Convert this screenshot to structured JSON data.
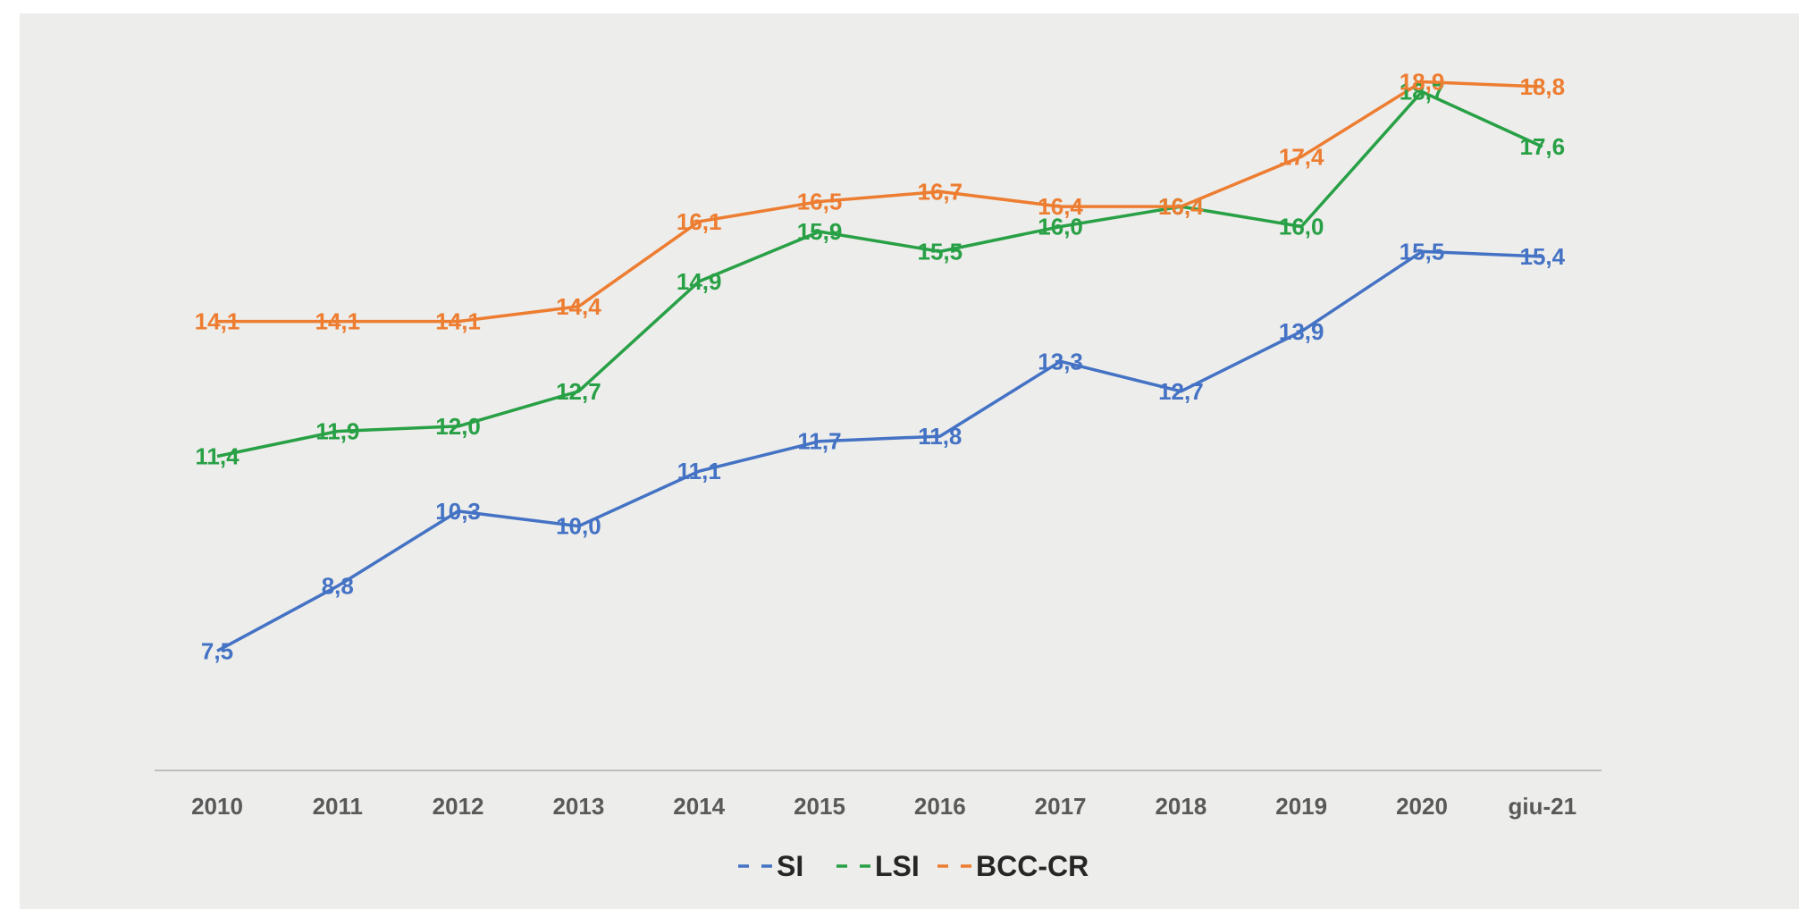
{
  "chart_data": {
    "type": "line",
    "categories": [
      "2010",
      "2011",
      "2012",
      "2013",
      "2014",
      "2015",
      "2016",
      "2017",
      "2018",
      "2019",
      "2020",
      "giu-21"
    ],
    "ylim": [
      5,
      20
    ],
    "grid": false,
    "legend_position": "bottom",
    "series": [
      {
        "name": "SI",
        "color": "#4472c4",
        "values": [
          7.5,
          8.8,
          10.3,
          10.0,
          11.1,
          11.7,
          11.8,
          13.3,
          12.7,
          13.9,
          15.5,
          15.4
        ],
        "labels": [
          "7,5",
          "8,8",
          "10,3",
          "10,0",
          "11,1",
          "11,7",
          "11,8",
          "13,3",
          "12,7",
          "13,9",
          "15,5",
          "15,4"
        ]
      },
      {
        "name": "LSI",
        "color": "#28a045",
        "values": [
          11.4,
          11.9,
          12.0,
          12.7,
          14.9,
          15.9,
          15.5,
          16.0,
          16.4,
          16.0,
          18.7,
          17.6
        ],
        "labels": [
          "11,4",
          "11,9",
          "12,0",
          "12,7",
          "14,9",
          "15,9",
          "15,5",
          "16,0",
          "16,4",
          "16,0",
          "18,7",
          "17,6"
        ]
      },
      {
        "name": "BCC-CR",
        "color": "#ed7d31",
        "values": [
          14.1,
          14.1,
          14.1,
          14.4,
          16.1,
          16.5,
          16.7,
          16.4,
          16.4,
          17.4,
          18.9,
          18.8
        ],
        "labels": [
          "14,1",
          "14,1",
          "14,1",
          "14,4",
          "16,1",
          "16,5",
          "16,7",
          "16,4",
          "16,4",
          "17,4",
          "18,9",
          "18,8"
        ]
      }
    ]
  }
}
